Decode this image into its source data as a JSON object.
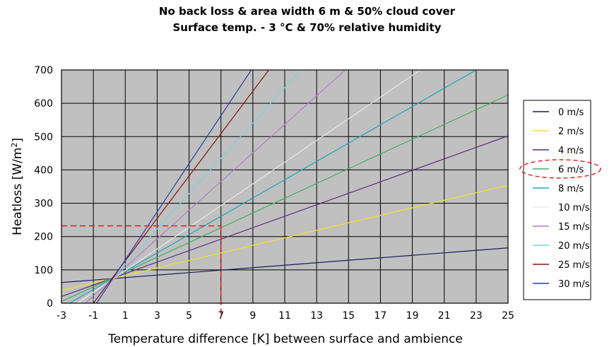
{
  "chart_data": {
    "type": "line",
    "title": "No back loss & area width 6 m & 50% cloud cover",
    "subtitle": "Surface temp. - 3 °C & 70% relative humidity",
    "xlabel": "Temperature difference [K] between surface and ambience",
    "ylabel_main": "Heatloss [W/m",
    "ylabel_sup": "2",
    "ylabel_close": "]",
    "xlim": [
      -3,
      25
    ],
    "ylim": [
      0,
      700
    ],
    "x_ticks": [
      "-3",
      "-1",
      "1",
      "3",
      "5",
      "7",
      "9",
      "11",
      "13",
      "15",
      "17",
      "19",
      "21",
      "23",
      "25"
    ],
    "y_ticks": [
      "0",
      "100",
      "200",
      "300",
      "400",
      "500",
      "600",
      "700"
    ],
    "grid": true,
    "plot_background": "#c0c0c0",
    "legend_position": "right",
    "series": [
      {
        "name": "0 m/s",
        "color": "#1a1a5e",
        "x": [
          -3,
          25
        ],
        "y": [
          62,
          166
        ]
      },
      {
        "name": "2 m/s",
        "color": "#f2e22a",
        "x": [
          -3,
          25
        ],
        "y": [
          38,
          354
        ]
      },
      {
        "name": "4 m/s",
        "color": "#5b2a86",
        "x": [
          -3,
          25
        ],
        "y": [
          20,
          502
        ]
      },
      {
        "name": "6 m/s",
        "color": "#3fae6a",
        "x": [
          -3,
          25
        ],
        "y": [
          5,
          625
        ]
      },
      {
        "name": "8 m/s",
        "color": "#1aa7b8",
        "x": [
          -2.5,
          23
        ],
        "y": [
          0,
          700
        ]
      },
      {
        "name": "10 m/s",
        "color": "#e8e8e8",
        "x": [
          -2,
          19.5
        ],
        "y": [
          0,
          700
        ]
      },
      {
        "name": "15 m/s",
        "color": "#b57bc6",
        "x": [
          -1.5,
          14.8
        ],
        "y": [
          0,
          700
        ]
      },
      {
        "name": "20 m/s",
        "color": "#7dd3dc",
        "x": [
          -1.2,
          12
        ],
        "y": [
          0,
          700
        ]
      },
      {
        "name": "25 m/s",
        "color": "#8b1010",
        "x": [
          -1,
          10
        ],
        "y": [
          0,
          700
        ]
      },
      {
        "name": "30 m/s",
        "color": "#2a3aa8",
        "x": [
          -0.8,
          8.9
        ],
        "y": [
          0,
          700
        ]
      }
    ],
    "highlight": {
      "series": "6 m/s",
      "x": 7,
      "y": 232,
      "color": "#e31a1c"
    }
  }
}
